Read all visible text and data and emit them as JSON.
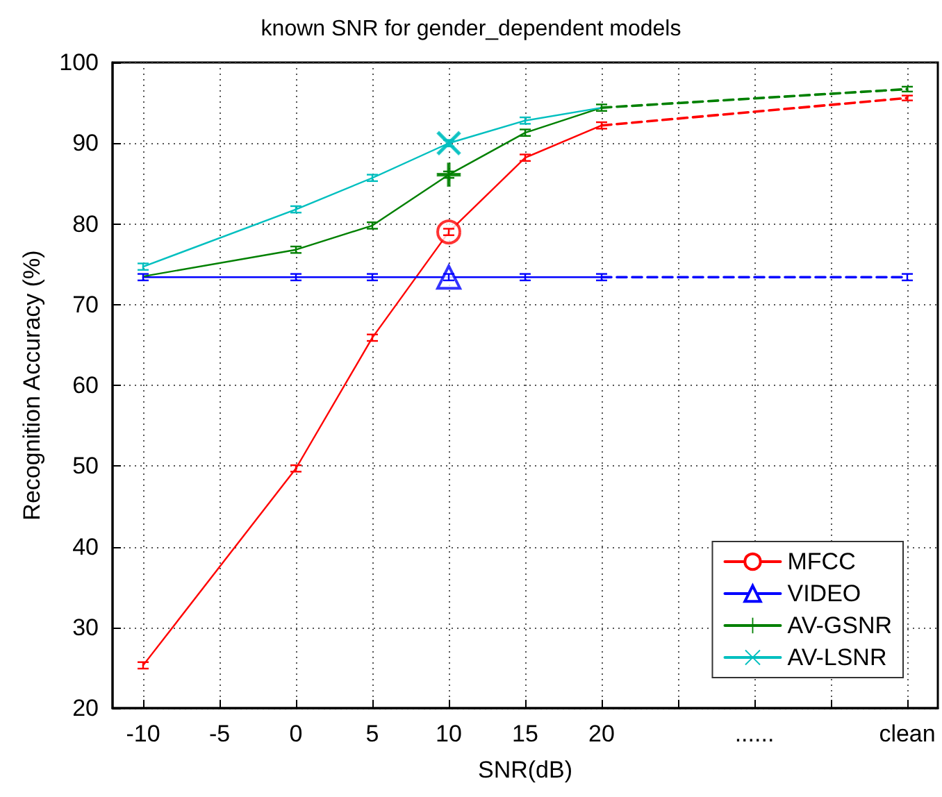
{
  "chart_data": {
    "type": "line",
    "title": "known SNR for gender_dependent models",
    "xlabel": "SNR(dB)",
    "ylabel": "Recognition Accuracy (%)",
    "xlim": [
      -12,
      42
    ],
    "xticks": [
      -10,
      -5,
      0,
      5,
      10,
      15,
      20,
      {
        "value": 25,
        "label": null
      },
      {
        "value": 30,
        "label": "......"
      },
      {
        "value": 35,
        "label": null
      },
      {
        "value": 40,
        "label": "clean"
      }
    ],
    "ylim": [
      20,
      100
    ],
    "yticks": [
      20,
      30,
      40,
      50,
      60,
      70,
      80,
      90,
      100
    ],
    "grid": true,
    "legend": "bottom right",
    "series": [
      {
        "name": "MFCC",
        "color": "#ff0000",
        "line_style": "solid",
        "x": [
          -10,
          0,
          5,
          10,
          15,
          20
        ],
        "values": [
          25.3,
          49.7,
          65.9,
          79.0,
          88.2,
          92.2
        ],
        "errors": [
          0.4,
          0.4,
          0.4,
          0.4,
          0.4,
          0.4
        ]
      },
      {
        "name": "VIDEO",
        "color": "#0000ff",
        "line_style": "solid",
        "x": [
          -10,
          0,
          5,
          10,
          15,
          20
        ],
        "values": [
          73.4,
          73.4,
          73.4,
          73.4,
          73.4,
          73.4
        ],
        "errors": [
          0.4,
          0.4,
          0.4,
          0.4,
          0.4,
          0.4
        ]
      },
      {
        "name": "AV-GSNR",
        "color": "#008000",
        "line_style": "solid",
        "x": [
          -10,
          0,
          5,
          10,
          15,
          20
        ],
        "values": [
          73.5,
          76.8,
          79.8,
          86.1,
          91.3,
          94.4
        ],
        "errors": [
          null,
          0.4,
          0.4,
          0.4,
          0.4,
          0.4
        ]
      },
      {
        "name": "AV-LSNR",
        "color": "#00bfbf",
        "line_style": "solid",
        "x": [
          -10,
          0,
          5,
          10,
          15,
          20
        ],
        "values": [
          74.7,
          81.8,
          85.7,
          90.0,
          92.8,
          94.4
        ],
        "errors": [
          0.4,
          0.4,
          0.4,
          0.4,
          0.4,
          null
        ]
      },
      {
        "type": "line",
        "color": "#ff0000",
        "marker": "none",
        "line_style": "dashed",
        "x": [
          20,
          40
        ],
        "values": [
          92.2,
          95.6
        ],
        "errors": [
          null,
          0.3
        ]
      },
      {
        "type": "line",
        "color": "#0000ff",
        "marker": "none",
        "line_style": "dashed",
        "x": [
          20,
          40
        ],
        "values": [
          73.4,
          73.4
        ],
        "errors": [
          null,
          0.4
        ]
      },
      {
        "type": "line",
        "color": "#008000",
        "marker": "none",
        "line_style": "dashed",
        "x": [
          20,
          40
        ],
        "values": [
          94.4,
          96.7
        ],
        "errors": [
          null,
          0.3
        ]
      },
      {
        "type": "scatter",
        "color": "#ff0000",
        "marker": "circle",
        "x": [
          10
        ],
        "values": [
          79.0
        ]
      },
      {
        "type": "scatter",
        "color": "#0000ff",
        "marker": "triangle",
        "x": [
          10
        ],
        "values": [
          73.4
        ]
      },
      {
        "type": "scatter",
        "color": "#008000",
        "marker": "cross",
        "x": [
          10
        ],
        "values": [
          86.1
        ]
      },
      {
        "type": "scatter",
        "color": "#00bfbf",
        "marker": "x",
        "x": [
          10
        ],
        "values": [
          90.0
        ]
      }
    ]
  }
}
